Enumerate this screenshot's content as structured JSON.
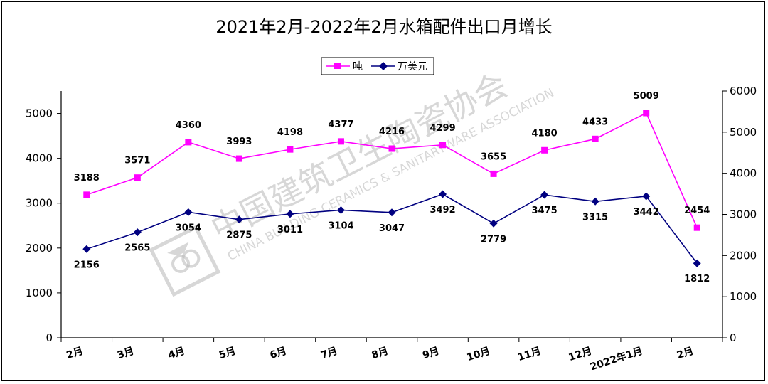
{
  "chart_data": {
    "type": "line",
    "title": "2021年2月-2022年2月水箱配件出口月增长",
    "categories": [
      "2月",
      "3月",
      "4月",
      "5月",
      "6月",
      "7月",
      "8月",
      "9月",
      "10月",
      "11月",
      "12月",
      "2022年1月",
      "2月"
    ],
    "series": [
      {
        "name": "吨",
        "axis": "left",
        "color": "#ff00ff",
        "marker": "square",
        "values": [
          3188,
          3571,
          4360,
          3993,
          4198,
          4377,
          4216,
          4299,
          3655,
          4180,
          4433,
          5009,
          2454
        ]
      },
      {
        "name": "万美元",
        "axis": "right",
        "color": "#000080",
        "marker": "diamond",
        "values": [
          2156,
          2565,
          3054,
          2875,
          3011,
          3104,
          3047,
          3492,
          2779,
          3475,
          3315,
          3442,
          1812
        ]
      }
    ],
    "y_left": {
      "min": 0,
      "max": 5500,
      "ticks": [
        0,
        1000,
        2000,
        3000,
        4000,
        5000
      ]
    },
    "y_right": {
      "min": 0,
      "max": 6000,
      "ticks": [
        0,
        1000,
        2000,
        3000,
        4000,
        5000,
        6000
      ]
    },
    "legend_position": "top-center",
    "grid": false
  },
  "watermark": {
    "cn": "中国建筑卫生陶瓷协会",
    "en": "CHINA BUILDING CERAMICS & SANITARYWARE ASSOCIATION"
  }
}
